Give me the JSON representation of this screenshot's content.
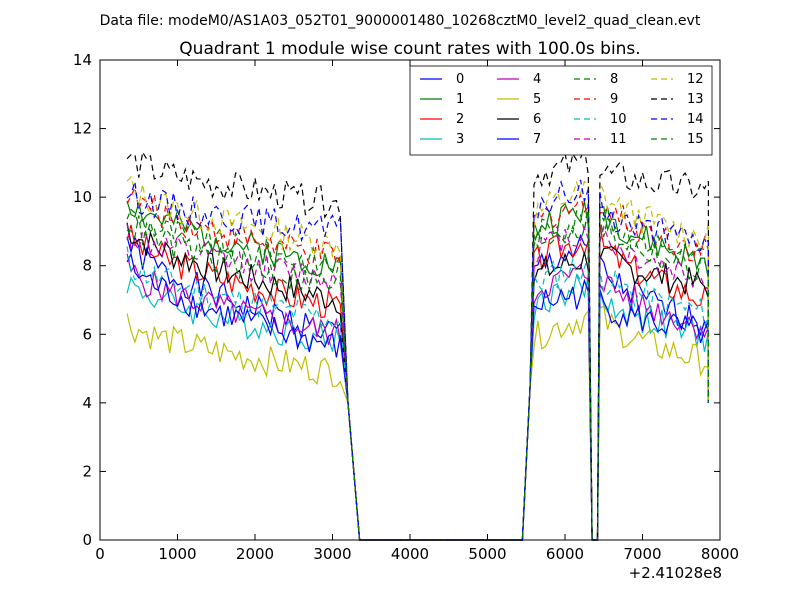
{
  "chart_data": {
    "type": "line",
    "suptitle": "Data file: modeM0/AS1A03_052T01_9000001480_10268cztM0_level2_quad_clean.evt",
    "title": "Quadrant 1 module wise count rates with 100.0s bins.",
    "xlabel": "",
    "ylabel": "",
    "x_offset_label": "+2.41028e8",
    "xlim": [
      0,
      8000
    ],
    "ylim": [
      0,
      14
    ],
    "xticks": [
      "0",
      "1000",
      "2000",
      "3000",
      "4000",
      "5000",
      "6000",
      "7000",
      "8000"
    ],
    "yticks": [
      "0",
      "2",
      "4",
      "6",
      "8",
      "10",
      "12",
      "14"
    ],
    "legend_position": "upper-right",
    "legend_columns": 4,
    "segments": [
      {
        "x_start": 350,
        "x_end": 3100,
        "gap_to": 3350
      },
      {
        "x_start": 5450,
        "x_end": 6300,
        "gap_to": 6400
      },
      {
        "x_start": 6450,
        "x_end": 7850,
        "gap_to": 7850
      }
    ],
    "series": [
      {
        "name": "0",
        "color": "#0000ff",
        "dash": "solid",
        "seg1": [
          8.8,
          6.0
        ],
        "seg2": [
          7.8,
          8.5
        ],
        "seg3": [
          8.0,
          6.3
        ],
        "seed": 1
      },
      {
        "name": "1",
        "color": "#008000",
        "dash": "solid",
        "seg1": [
          10.0,
          8.0
        ],
        "seg2": [
          9.0,
          9.6
        ],
        "seg3": [
          9.8,
          8.0
        ],
        "seed": 2
      },
      {
        "name": "2",
        "color": "#ff0000",
        "dash": "solid",
        "seg1": [
          9.0,
          6.8
        ],
        "seg2": [
          8.0,
          8.8
        ],
        "seg3": [
          8.8,
          7.0
        ],
        "seed": 3
      },
      {
        "name": "3",
        "color": "#00bfbf",
        "dash": "solid",
        "seg1": [
          7.6,
          5.8
        ],
        "seg2": [
          6.8,
          7.4
        ],
        "seg3": [
          7.2,
          5.9
        ],
        "seed": 4
      },
      {
        "name": "4",
        "color": "#bf00bf",
        "dash": "solid",
        "seg1": [
          8.0,
          6.0
        ],
        "seg2": [
          7.2,
          7.8
        ],
        "seg3": [
          7.8,
          6.2
        ],
        "seed": 5
      },
      {
        "name": "5",
        "color": "#bfbf00",
        "dash": "solid",
        "seg1": [
          6.4,
          4.9
        ],
        "seg2": [
          5.8,
          6.5
        ],
        "seg3": [
          6.6,
          5.2
        ],
        "seed": 6
      },
      {
        "name": "6",
        "color": "#000000",
        "dash": "solid",
        "seg1": [
          9.2,
          7.0
        ],
        "seg2": [
          7.6,
          8.2
        ],
        "seg3": [
          8.4,
          7.4
        ],
        "seed": 7
      },
      {
        "name": "7",
        "color": "#0000ff",
        "dash": "solid",
        "seg1": [
          8.2,
          5.6
        ],
        "seg2": [
          6.8,
          7.2
        ],
        "seg3": [
          7.0,
          6.0
        ],
        "seed": 8
      },
      {
        "name": "8",
        "color": "#008000",
        "dash": "dashed",
        "seg1": [
          9.6,
          8.0
        ],
        "seg2": [
          8.8,
          9.4
        ],
        "seg3": [
          9.6,
          8.2
        ],
        "seed": 9
      },
      {
        "name": "9",
        "color": "#ff0000",
        "dash": "dashed",
        "seg1": [
          10.2,
          8.2
        ],
        "seg2": [
          9.2,
          9.8
        ],
        "seg3": [
          10.0,
          8.4
        ],
        "seed": 10
      },
      {
        "name": "10",
        "color": "#00bfbf",
        "dash": "dashed",
        "seg1": [
          8.2,
          6.4
        ],
        "seg2": [
          7.4,
          8.0
        ],
        "seg3": [
          7.8,
          6.6
        ],
        "seed": 11
      },
      {
        "name": "11",
        "color": "#bf00bf",
        "dash": "dashed",
        "seg1": [
          9.0,
          7.6
        ],
        "seg2": [
          8.4,
          9.0
        ],
        "seg3": [
          9.0,
          7.6
        ],
        "seed": 12
      },
      {
        "name": "12",
        "color": "#bfbf00",
        "dash": "dashed",
        "seg1": [
          10.4,
          8.6
        ],
        "seg2": [
          9.4,
          10.2
        ],
        "seg3": [
          10.2,
          8.8
        ],
        "seed": 13
      },
      {
        "name": "13",
        "color": "#000000",
        "dash": "dashed",
        "seg1": [
          11.2,
          9.8
        ],
        "seg2": [
          10.6,
          11.0
        ],
        "seg3": [
          10.8,
          10.2
        ],
        "seed": 14
      },
      {
        "name": "14",
        "color": "#0000ff",
        "dash": "dashed",
        "seg1": [
          10.2,
          9.0
        ],
        "seg2": [
          9.6,
          10.2
        ],
        "seg3": [
          9.8,
          8.6
        ],
        "seed": 15
      },
      {
        "name": "15",
        "color": "#008000",
        "dash": "dashed",
        "seg1": [
          9.4,
          7.4
        ],
        "seg2": [
          8.6,
          9.2
        ],
        "seg3": [
          9.4,
          7.8
        ],
        "seed": 16
      }
    ]
  }
}
